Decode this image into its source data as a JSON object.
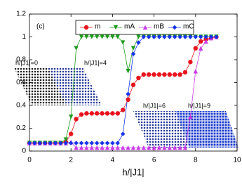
{
  "chart_data": {
    "type": "line",
    "panel_label": "(c)",
    "xlabel": "h/|J1|",
    "x": [
      0,
      0.25,
      0.5,
      0.75,
      1,
      1.25,
      1.5,
      1.75,
      2,
      2.25,
      2.5,
      2.75,
      3,
      3.25,
      3.5,
      3.75,
      4,
      4.25,
      4.5,
      4.75,
      5,
      5.25,
      5.5,
      5.75,
      6,
      6.25,
      6.5,
      6.75,
      7,
      7.25,
      7.5,
      7.75,
      8,
      8.25,
      8.5,
      8.75,
      9
    ],
    "series": [
      {
        "name": "m",
        "color": "#e8141e",
        "marker": "circle",
        "values": [
          0.07,
          0.07,
          0.07,
          0.07,
          0.07,
          0.07,
          0.07,
          0.08,
          0.15,
          0.28,
          0.32,
          0.33,
          0.33,
          0.33,
          0.33,
          0.33,
          0.33,
          0.33,
          0.36,
          0.45,
          0.58,
          0.64,
          0.67,
          0.67,
          0.67,
          0.67,
          0.67,
          0.67,
          0.67,
          0.67,
          0.69,
          0.78,
          0.9,
          0.96,
          0.98,
          0.99,
          1
        ]
      },
      {
        "name": "mA",
        "color": "#1e9a1e",
        "marker": "triangle-down",
        "values": [
          0.07,
          0.07,
          0.07,
          0.07,
          0.07,
          0.07,
          0.07,
          0.1,
          0.3,
          0.9,
          1,
          1,
          1,
          1,
          1,
          1,
          1,
          1,
          0.95,
          0.7,
          0.9,
          1,
          1,
          1,
          1,
          1,
          1,
          1,
          1,
          1,
          1,
          1,
          1,
          1,
          1,
          1,
          1
        ]
      },
      {
        "name": "mB",
        "color": "#c83ce6",
        "marker": "triangle-up",
        "values": [
          0.07,
          0.07,
          0.07,
          0.07,
          0.07,
          0.07,
          0.07,
          0.07,
          0.08,
          0.03,
          0.03,
          0.03,
          0.03,
          0.03,
          0.03,
          0.03,
          0.03,
          0.03,
          0.03,
          0.03,
          0.03,
          0.03,
          0.03,
          0.03,
          0.03,
          0.03,
          0.03,
          0.03,
          0.03,
          0.03,
          0.03,
          0.3,
          0.7,
          0.9,
          0.96,
          0.99,
          1
        ]
      },
      {
        "name": "mC",
        "color": "#1432e6",
        "marker": "diamond",
        "values": [
          0.07,
          0.07,
          0.07,
          0.07,
          0.07,
          0.07,
          0.07,
          0.07,
          0.07,
          0.07,
          0.07,
          0.07,
          0.07,
          0.07,
          0.07,
          0.07,
          0.07,
          0.07,
          0.15,
          0.5,
          0.85,
          0.95,
          1,
          1,
          1,
          1,
          1,
          1,
          1,
          1,
          1,
          1,
          1,
          1,
          1,
          1,
          1
        ]
      }
    ],
    "annotations": [
      "h/|J1|=0",
      "h/|J1|=4",
      "h/|J1|=6",
      "h/|J1|=9"
    ],
    "xlim": [
      0,
      10
    ],
    "xticks": [
      0,
      2,
      4,
      6,
      8,
      10
    ],
    "ylim": [
      0,
      1.2
    ],
    "yticks": [
      0,
      0.2,
      0.4,
      0.6,
      0.8,
      1,
      1.2
    ]
  }
}
